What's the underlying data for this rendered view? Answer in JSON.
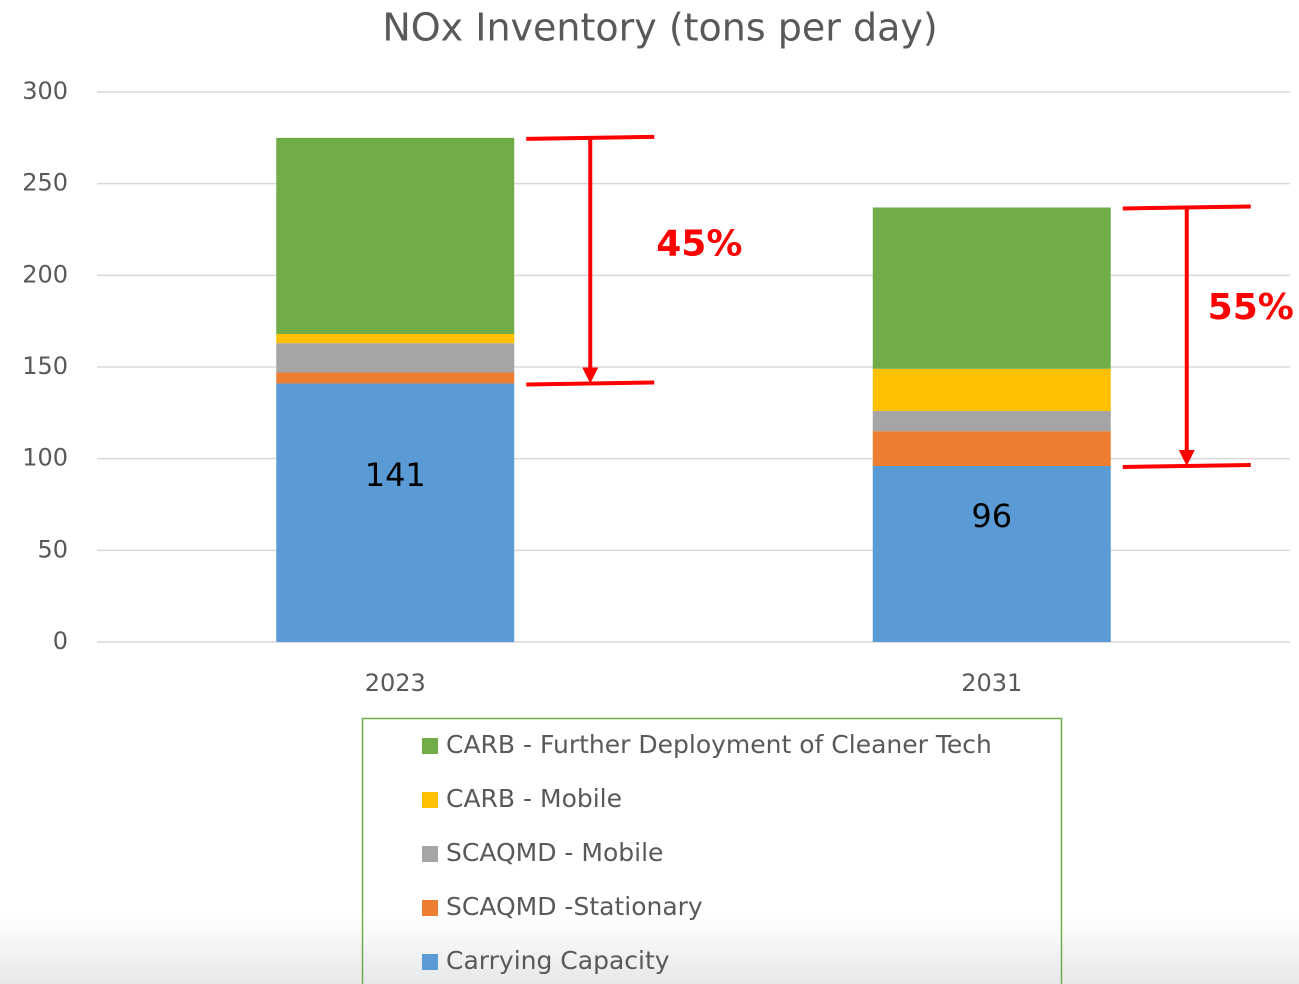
{
  "chart_data": {
    "type": "stacked_bar",
    "title": "NOx Inventory (tons per day)",
    "categories": [
      "2023",
      "2031"
    ],
    "series": [
      {
        "name": "Carrying Capacity",
        "color": "#5b9bd5",
        "values": [
          141,
          96
        ],
        "data_labels": true
      },
      {
        "name": "SCAQMD -Stationary",
        "color": "#ed7d31",
        "values": [
          6,
          19
        ]
      },
      {
        "name": "SCAQMD - Mobile",
        "color": "#a5a5a5",
        "values": [
          16,
          11
        ]
      },
      {
        "name": "CARB - Mobile",
        "color": "#ffc000",
        "values": [
          5,
          23
        ]
      },
      {
        "name": "CARB - Further Deployment of Cleaner Tech",
        "color": "#70ad47",
        "values": [
          107,
          88
        ]
      }
    ],
    "ylim": [
      0,
      300
    ],
    "yticks": [
      0,
      50,
      100,
      150,
      200,
      250,
      300
    ],
    "grid": true,
    "legend": "bottom",
    "annotations": [
      "45%",
      "55%"
    ]
  }
}
